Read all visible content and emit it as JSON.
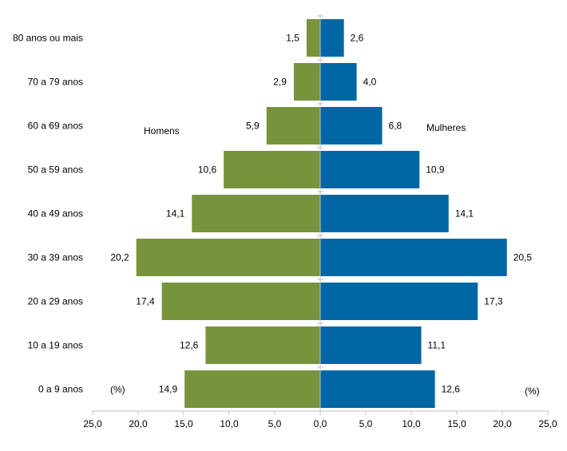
{
  "chart_data": {
    "type": "bar",
    "orientation": "horizontal",
    "layout": "population-pyramid",
    "categories": [
      "0 a 9 anos",
      "10 a 19 anos",
      "20 a 29 anos",
      "30 a 39 anos",
      "40 a 49 anos",
      "50 a 59 anos",
      "60 a 69 anos",
      "70 a 79 anos",
      "80 anos ou mais"
    ],
    "series": [
      {
        "name": "Homens",
        "side": "left",
        "color": "#77933c",
        "values": [
          14.9,
          12.6,
          17.4,
          20.2,
          14.1,
          10.6,
          5.9,
          2.9,
          1.5
        ],
        "labels": [
          "14,9",
          "12,6",
          "17,4",
          "20,2",
          "14,1",
          "10,6",
          "5,9",
          "2,9",
          "1,5"
        ]
      },
      {
        "name": "Mulheres",
        "side": "right",
        "color": "#0067a3",
        "values": [
          12.6,
          11.1,
          17.3,
          20.5,
          14.1,
          10.9,
          6.8,
          4.0,
          2.6
        ],
        "labels": [
          "12,6",
          "11,1",
          "17,3",
          "20,5",
          "14,1",
          "10,9",
          "6,8",
          "4,0",
          "2,6"
        ]
      }
    ],
    "xlim": [
      -25,
      25
    ],
    "xticks": [
      -25,
      -20,
      -15,
      -10,
      -5,
      0,
      5,
      10,
      15,
      20,
      25
    ],
    "xtick_labels": [
      "25,0",
      "20,0",
      "15,0",
      "10,0",
      "5,0",
      "0,0",
      "5,0",
      "10,0",
      "15,0",
      "20,0",
      "25,0"
    ],
    "unit_left": "(%)",
    "unit_right": "(%)",
    "grid": false,
    "axis_color": "#bfbfbf"
  }
}
